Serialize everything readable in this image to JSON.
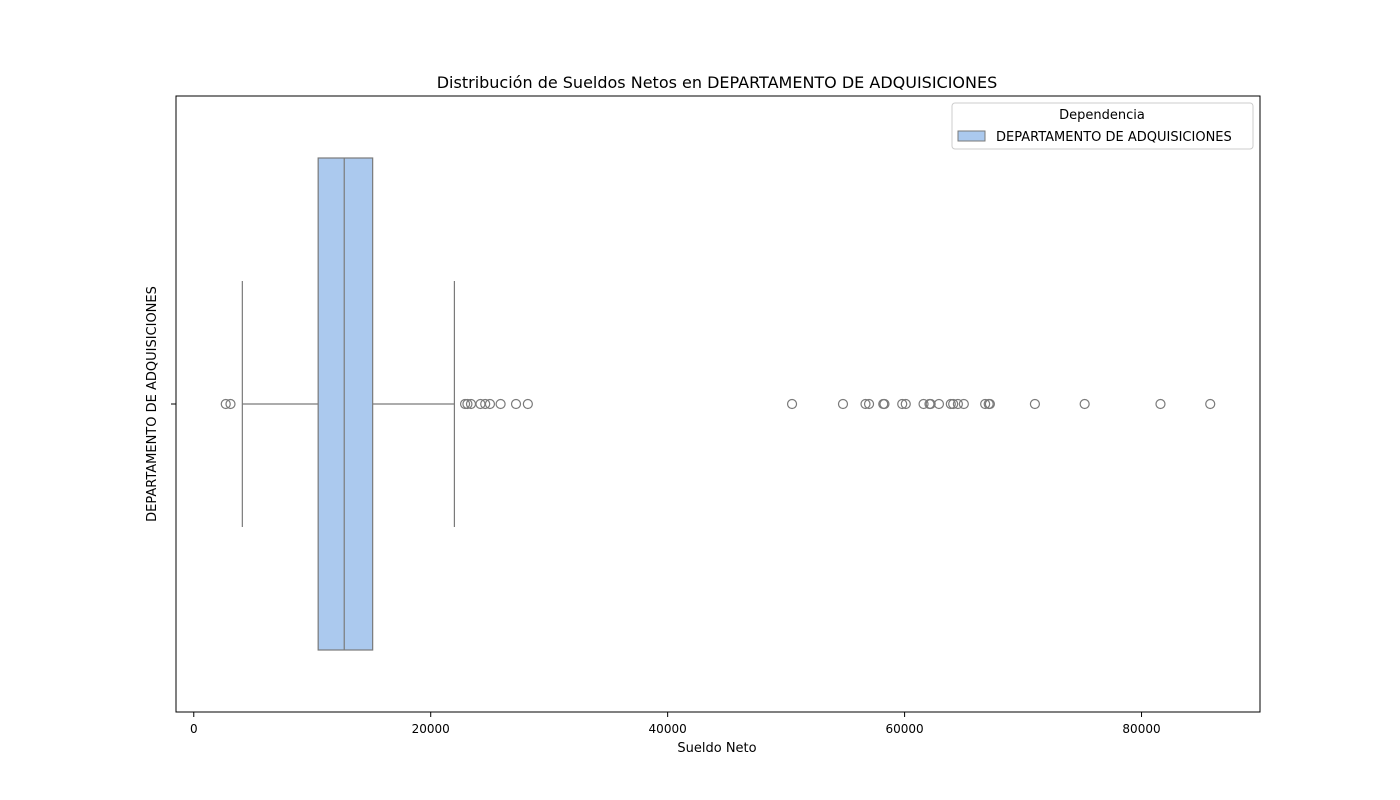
{
  "chart_data": {
    "type": "boxplot",
    "orientation": "horizontal",
    "title": "Distribución de Sueldos Netos en DEPARTAMENTO DE ADQUISICIONES",
    "xlabel": "Sueldo Neto",
    "ylabel": "DEPARTAMENTO DE ADQUISICIONES",
    "xlim": [
      -1500,
      90000
    ],
    "xticks": [
      0,
      20000,
      40000,
      60000,
      80000
    ],
    "xtick_labels": [
      "0",
      "20000",
      "40000",
      "60000",
      "80000"
    ],
    "legend": {
      "title": "Dependencia",
      "placement": "top-right",
      "entries": [
        "DEPARTAMENTO DE ADQUISICIONES"
      ]
    },
    "series": [
      {
        "name": "DEPARTAMENTO DE ADQUISICIONES",
        "color": "#abc9ee",
        "edge_color": "#7a7a7a",
        "whisker_low": 4100,
        "q1": 10500,
        "median": 12700,
        "q3": 15100,
        "whisker_high": 22000,
        "outliers": [
          2700,
          3100,
          22900,
          23100,
          23400,
          24200,
          24600,
          25000,
          25900,
          27200,
          28200,
          50500,
          54800,
          56700,
          57000,
          58200,
          58300,
          59800,
          60100,
          61600,
          62100,
          62200,
          62900,
          63900,
          64100,
          64500,
          65000,
          66800,
          67100,
          67200,
          71000,
          75200,
          81600,
          85800
        ]
      }
    ]
  }
}
